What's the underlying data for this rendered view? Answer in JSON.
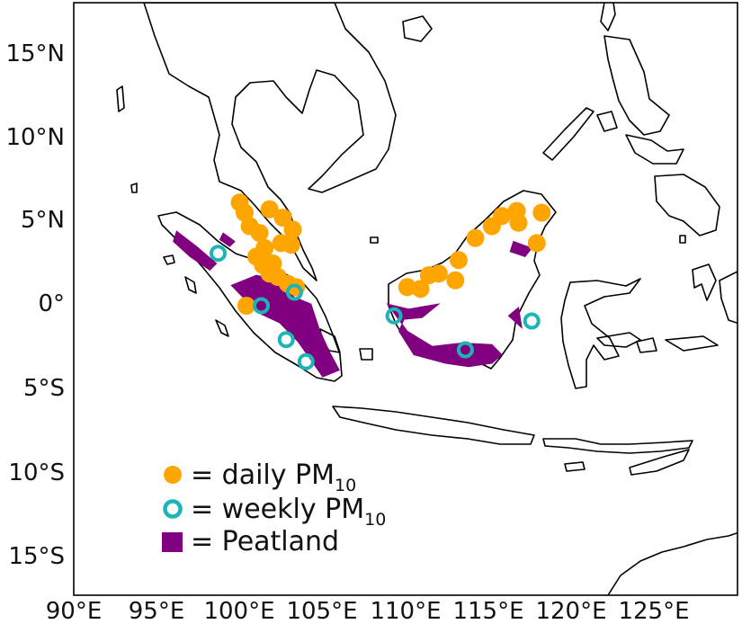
{
  "map": {
    "lon_ticks": [
      "90°E",
      "95°E",
      "100°E",
      "105°E",
      "110°E",
      "115°E",
      "120°E",
      "125°E"
    ],
    "lat_ticks": [
      "15°N",
      "10°N",
      "5°N",
      "0°",
      "5°S",
      "10°S",
      "15°S"
    ],
    "extent": {
      "lon": [
        90,
        130
      ],
      "lat": [
        -17,
        18
      ]
    }
  },
  "legend": {
    "items": [
      {
        "key": "daily",
        "text": "= daily PM",
        "subscript": "10",
        "color": "#FFA500"
      },
      {
        "key": "weekly",
        "text": "= weekly PM",
        "subscript": "10",
        "color": "#1CB5B7"
      },
      {
        "key": "peatland",
        "text": "= Peatland",
        "subscript": "",
        "color": "#800080"
      }
    ]
  },
  "stations": {
    "daily": [
      [
        100.0,
        6.2
      ],
      [
        100.3,
        5.6
      ],
      [
        100.6,
        4.8
      ],
      [
        101.2,
        4.4
      ],
      [
        101.8,
        5.8
      ],
      [
        102.6,
        5.3
      ],
      [
        103.2,
        4.6
      ],
      [
        103.1,
        3.7
      ],
      [
        102.5,
        3.8
      ],
      [
        101.5,
        3.5
      ],
      [
        101.0,
        3.0
      ],
      [
        101.4,
        2.5
      ],
      [
        102.0,
        2.6
      ],
      [
        101.8,
        2.0
      ],
      [
        102.3,
        1.8
      ],
      [
        102.9,
        1.4
      ],
      [
        103.4,
        1.2
      ],
      [
        100.4,
        0.1
      ],
      [
        110.1,
        1.2
      ],
      [
        110.9,
        1.1
      ],
      [
        111.4,
        1.9
      ],
      [
        112.0,
        2.0
      ],
      [
        113.2,
        2.8
      ],
      [
        113.0,
        1.6
      ],
      [
        114.2,
        4.1
      ],
      [
        115.2,
        4.8
      ],
      [
        115.8,
        5.4
      ],
      [
        116.7,
        5.7
      ],
      [
        118.2,
        5.6
      ],
      [
        117.9,
        3.8
      ],
      [
        116.8,
        5.0
      ]
    ],
    "weekly": [
      [
        98.7,
        3.2
      ],
      [
        101.3,
        0.1
      ],
      [
        103.3,
        0.9
      ],
      [
        102.8,
        -1.9
      ],
      [
        104.0,
        -3.2
      ],
      [
        109.3,
        -0.5
      ],
      [
        113.6,
        -2.5
      ],
      [
        117.6,
        -0.8
      ]
    ]
  },
  "peatland": [
    [
      [
        96.2,
        4.5
      ],
      [
        97.4,
        3.6
      ],
      [
        98.6,
        2.6
      ],
      [
        98.2,
        2.2
      ],
      [
        97.0,
        3.0
      ],
      [
        96.0,
        3.9
      ]
    ],
    [
      [
        99.5,
        1.3
      ],
      [
        101.0,
        1.9
      ],
      [
        102.4,
        1.6
      ],
      [
        103.3,
        0.6
      ],
      [
        104.3,
        0.2
      ],
      [
        104.8,
        -1.3
      ],
      [
        105.4,
        -2.6
      ],
      [
        106.0,
        -3.7
      ],
      [
        105.0,
        -4.1
      ],
      [
        104.3,
        -3.1
      ],
      [
        103.5,
        -2.0
      ],
      [
        102.4,
        -0.9
      ],
      [
        101.3,
        -0.4
      ],
      [
        100.3,
        0.5
      ]
    ],
    [
      [
        108.9,
        0.2
      ],
      [
        110.2,
        -0.1
      ],
      [
        112.0,
        0.2
      ],
      [
        111.0,
        -0.6
      ],
      [
        109.9,
        -0.7
      ],
      [
        109.6,
        -1.4
      ],
      [
        110.5,
        -2.8
      ],
      [
        112.4,
        -3.3
      ],
      [
        113.8,
        -3.5
      ],
      [
        115.2,
        -3.3
      ],
      [
        115.8,
        -2.8
      ],
      [
        115.2,
        -2.2
      ],
      [
        113.4,
        -2.1
      ],
      [
        111.6,
        -2.3
      ],
      [
        110.1,
        -1.4
      ]
    ],
    [
      [
        116.2,
        -0.5
      ],
      [
        117.0,
        -1.2
      ],
      [
        116.8,
        0.0
      ]
    ],
    [
      [
        116.5,
        3.9
      ],
      [
        117.6,
        3.5
      ],
      [
        117.2,
        3.0
      ],
      [
        116.3,
        3.3
      ]
    ],
    [
      [
        99.0,
        4.4
      ],
      [
        99.7,
        3.9
      ],
      [
        99.4,
        3.6
      ],
      [
        98.8,
        4.0
      ]
    ]
  ]
}
